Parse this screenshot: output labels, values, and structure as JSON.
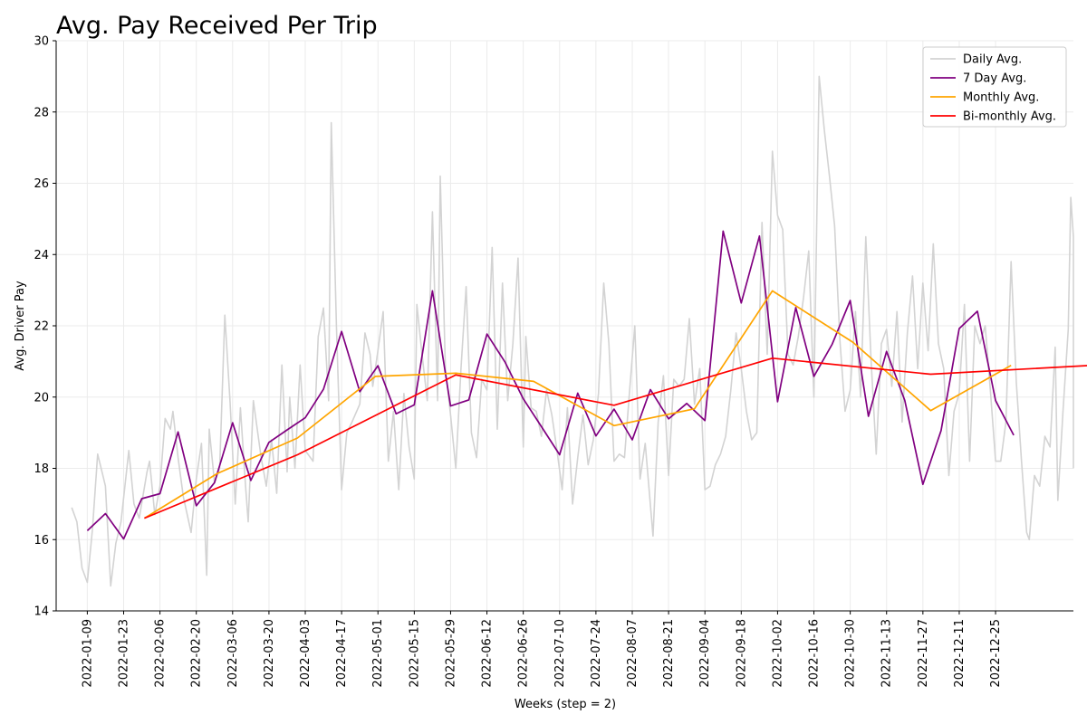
{
  "chart_data": {
    "type": "line",
    "title": "Avg. Pay Received Per Trip",
    "xlabel": "Weeks (step = 2)",
    "ylabel": "Avg. Driver Pay",
    "xlim": [
      "2021-12-28",
      "2023-01-24"
    ],
    "ylim": [
      14,
      30
    ],
    "grid": true,
    "legend": "top-right",
    "x_ticks": [
      "2022-01-09",
      "2022-01-23",
      "2022-02-06",
      "2022-02-20",
      "2022-03-06",
      "2022-03-20",
      "2022-04-03",
      "2022-04-17",
      "2022-05-01",
      "2022-05-15",
      "2022-05-29",
      "2022-06-12",
      "2022-06-26",
      "2022-07-10",
      "2022-07-24",
      "2022-08-07",
      "2022-08-21",
      "2022-09-04",
      "2022-09-18",
      "2022-10-02",
      "2022-10-16",
      "2022-10-30",
      "2022-11-13",
      "2022-11-27",
      "2022-12-11",
      "2022-12-25"
    ],
    "y_ticks": [
      14,
      16,
      18,
      20,
      22,
      24,
      26,
      28,
      30
    ],
    "series": [
      {
        "name": "Daily Avg.",
        "color": "#d3d3d3",
        "points": [
          [
            "2022-01-03",
            16.9
          ],
          [
            "2022-01-05",
            16.5
          ],
          [
            "2022-01-07",
            15.2
          ],
          [
            "2022-01-09",
            14.8
          ],
          [
            "2022-01-11",
            16.3
          ],
          [
            "2022-01-13",
            18.4
          ],
          [
            "2022-01-15",
            17.8
          ],
          [
            "2022-01-16",
            17.5
          ],
          [
            "2022-01-18",
            14.7
          ],
          [
            "2022-01-20",
            15.9
          ],
          [
            "2022-01-22",
            16.5
          ],
          [
            "2022-01-25",
            18.5
          ],
          [
            "2022-01-27",
            17.0
          ],
          [
            "2022-01-29",
            16.6
          ],
          [
            "2022-02-01",
            17.9
          ],
          [
            "2022-02-02",
            18.2
          ],
          [
            "2022-02-04",
            16.7
          ],
          [
            "2022-02-06",
            17.5
          ],
          [
            "2022-02-08",
            19.4
          ],
          [
            "2022-02-10",
            19.1
          ],
          [
            "2022-02-11",
            19.6
          ],
          [
            "2022-02-13",
            18.3
          ],
          [
            "2022-02-15",
            17.2
          ],
          [
            "2022-02-18",
            16.2
          ],
          [
            "2022-02-20",
            17.7
          ],
          [
            "2022-02-22",
            18.7
          ],
          [
            "2022-02-24",
            15.0
          ],
          [
            "2022-02-25",
            19.1
          ],
          [
            "2022-02-27",
            17.6
          ],
          [
            "2022-03-01",
            18.0
          ],
          [
            "2022-03-03",
            22.3
          ],
          [
            "2022-03-05",
            19.9
          ],
          [
            "2022-03-07",
            17.0
          ],
          [
            "2022-03-09",
            19.7
          ],
          [
            "2022-03-11",
            17.5
          ],
          [
            "2022-03-12",
            16.5
          ],
          [
            "2022-03-14",
            19.9
          ],
          [
            "2022-03-17",
            18.3
          ],
          [
            "2022-03-19",
            17.5
          ],
          [
            "2022-03-21",
            18.8
          ],
          [
            "2022-03-23",
            17.3
          ],
          [
            "2022-03-25",
            20.9
          ],
          [
            "2022-03-27",
            17.9
          ],
          [
            "2022-03-28",
            20.0
          ],
          [
            "2022-03-30",
            18.0
          ],
          [
            "2022-04-01",
            20.9
          ],
          [
            "2022-04-03",
            18.5
          ],
          [
            "2022-04-06",
            18.2
          ],
          [
            "2022-04-08",
            21.7
          ],
          [
            "2022-04-10",
            22.5
          ],
          [
            "2022-04-12",
            19.9
          ],
          [
            "2022-04-13",
            27.7
          ],
          [
            "2022-04-15",
            22.0
          ],
          [
            "2022-04-17",
            17.4
          ],
          [
            "2022-04-19",
            19.0
          ],
          [
            "2022-04-21",
            19.3
          ],
          [
            "2022-04-24",
            19.8
          ],
          [
            "2022-04-26",
            21.8
          ],
          [
            "2022-04-28",
            21.2
          ],
          [
            "2022-04-29",
            20.3
          ],
          [
            "2022-05-01",
            21.3
          ],
          [
            "2022-05-03",
            22.4
          ],
          [
            "2022-05-05",
            18.2
          ],
          [
            "2022-05-07",
            19.6
          ],
          [
            "2022-05-09",
            17.4
          ],
          [
            "2022-05-11",
            20.1
          ],
          [
            "2022-05-13",
            18.6
          ],
          [
            "2022-05-15",
            17.7
          ],
          [
            "2022-05-16",
            22.6
          ],
          [
            "2022-05-18",
            21.2
          ],
          [
            "2022-05-20",
            19.9
          ],
          [
            "2022-05-22",
            25.2
          ],
          [
            "2022-05-24",
            19.9
          ],
          [
            "2022-05-25",
            26.2
          ],
          [
            "2022-05-27",
            20.8
          ],
          [
            "2022-05-29",
            19.5
          ],
          [
            "2022-05-31",
            18.0
          ],
          [
            "2022-06-02",
            20.8
          ],
          [
            "2022-06-04",
            23.1
          ],
          [
            "2022-06-06",
            19.0
          ],
          [
            "2022-06-08",
            18.3
          ],
          [
            "2022-06-10",
            20.5
          ],
          [
            "2022-06-12",
            20.2
          ],
          [
            "2022-06-14",
            24.2
          ],
          [
            "2022-06-16",
            19.1
          ],
          [
            "2022-06-18",
            23.2
          ],
          [
            "2022-06-20",
            19.9
          ],
          [
            "2022-06-22",
            21.5
          ],
          [
            "2022-06-24",
            23.9
          ],
          [
            "2022-06-26",
            18.6
          ],
          [
            "2022-06-27",
            21.7
          ],
          [
            "2022-06-29",
            19.7
          ],
          [
            "2022-07-01",
            19.6
          ],
          [
            "2022-07-03",
            18.9
          ],
          [
            "2022-07-05",
            20.2
          ],
          [
            "2022-07-07",
            19.5
          ],
          [
            "2022-07-09",
            18.5
          ],
          [
            "2022-07-11",
            17.4
          ],
          [
            "2022-07-13",
            19.7
          ],
          [
            "2022-07-15",
            17.0
          ],
          [
            "2022-07-17",
            18.3
          ],
          [
            "2022-07-19",
            19.5
          ],
          [
            "2022-07-21",
            18.1
          ],
          [
            "2022-07-23",
            18.8
          ],
          [
            "2022-07-25",
            20.1
          ],
          [
            "2022-07-27",
            23.2
          ],
          [
            "2022-07-29",
            21.5
          ],
          [
            "2022-07-31",
            18.2
          ],
          [
            "2022-08-02",
            18.4
          ],
          [
            "2022-08-04",
            18.3
          ],
          [
            "2022-08-06",
            20.2
          ],
          [
            "2022-08-08",
            22.0
          ],
          [
            "2022-08-10",
            17.7
          ],
          [
            "2022-08-12",
            18.7
          ],
          [
            "2022-08-15",
            16.1
          ],
          [
            "2022-08-17",
            19.3
          ],
          [
            "2022-08-19",
            20.6
          ],
          [
            "2022-08-21",
            17.8
          ],
          [
            "2022-08-23",
            20.5
          ],
          [
            "2022-08-25",
            20.3
          ],
          [
            "2022-08-27",
            20.5
          ],
          [
            "2022-08-29",
            22.2
          ],
          [
            "2022-08-31",
            19.8
          ],
          [
            "2022-09-02",
            20.8
          ],
          [
            "2022-09-04",
            17.4
          ],
          [
            "2022-09-06",
            17.5
          ],
          [
            "2022-09-08",
            18.1
          ],
          [
            "2022-09-10",
            18.4
          ],
          [
            "2022-09-12",
            18.9
          ],
          [
            "2022-09-14",
            20.2
          ],
          [
            "2022-09-16",
            21.8
          ],
          [
            "2022-09-18",
            20.8
          ],
          [
            "2022-09-20",
            19.6
          ],
          [
            "2022-09-22",
            18.8
          ],
          [
            "2022-09-24",
            19.0
          ],
          [
            "2022-09-26",
            24.9
          ],
          [
            "2022-09-28",
            21.2
          ],
          [
            "2022-09-30",
            26.9
          ],
          [
            "2022-10-02",
            25.1
          ],
          [
            "2022-10-04",
            24.7
          ],
          [
            "2022-10-06",
            21.2
          ],
          [
            "2022-10-08",
            20.9
          ],
          [
            "2022-10-10",
            21.7
          ],
          [
            "2022-10-12",
            22.8
          ],
          [
            "2022-10-14",
            24.1
          ],
          [
            "2022-10-16",
            20.0
          ],
          [
            "2022-10-18",
            29.0
          ],
          [
            "2022-10-20",
            27.5
          ],
          [
            "2022-10-22",
            26.2
          ],
          [
            "2022-10-24",
            24.8
          ],
          [
            "2022-10-26",
            21.6
          ],
          [
            "2022-10-28",
            19.6
          ],
          [
            "2022-10-30",
            20.2
          ],
          [
            "2022-11-01",
            22.4
          ],
          [
            "2022-11-03",
            20.0
          ],
          [
            "2022-11-05",
            24.5
          ],
          [
            "2022-11-07",
            21.1
          ],
          [
            "2022-11-09",
            18.4
          ],
          [
            "2022-11-11",
            21.5
          ],
          [
            "2022-11-13",
            21.9
          ],
          [
            "2022-11-15",
            20.3
          ],
          [
            "2022-11-17",
            22.4
          ],
          [
            "2022-11-19",
            19.3
          ],
          [
            "2022-11-21",
            21.8
          ],
          [
            "2022-11-23",
            23.4
          ],
          [
            "2022-11-25",
            20.8
          ],
          [
            "2022-11-27",
            23.2
          ],
          [
            "2022-11-29",
            21.3
          ],
          [
            "2022-12-01",
            24.3
          ],
          [
            "2022-12-03",
            21.5
          ],
          [
            "2022-12-05",
            20.8
          ],
          [
            "2022-12-07",
            17.8
          ],
          [
            "2022-12-09",
            19.6
          ],
          [
            "2022-12-11",
            20.1
          ],
          [
            "2022-12-13",
            22.6
          ],
          [
            "2022-12-15",
            18.2
          ],
          [
            "2022-12-17",
            22.0
          ],
          [
            "2022-12-19",
            21.5
          ],
          [
            "2022-12-21",
            22.0
          ],
          [
            "2022-12-23",
            20.2
          ],
          [
            "2022-12-25",
            18.2
          ],
          [
            "2022-12-27",
            18.2
          ],
          [
            "2022-12-29",
            19.3
          ],
          [
            "2022-12-31",
            23.8
          ],
          [
            "2023-01-02",
            20.4
          ],
          [
            "2023-01-04",
            18.2
          ],
          [
            "2023-01-06",
            16.2
          ],
          [
            "2023-01-07",
            16.0
          ],
          [
            "2023-01-09",
            17.8
          ],
          [
            "2023-01-11",
            17.5
          ],
          [
            "2023-01-13",
            18.9
          ],
          [
            "2023-01-15",
            18.6
          ],
          [
            "2023-01-17",
            21.4
          ],
          [
            "2023-01-18",
            17.1
          ],
          [
            "2023-01-20",
            19.6
          ],
          [
            "2023-01-22",
            21.9
          ],
          [
            "2023-01-23",
            25.6
          ],
          [
            "2023-01-24",
            24.5
          ],
          [
            "2023-01-24",
            18.0
          ]
        ]
      },
      {
        "name": "7 Day Avg.",
        "color": "#800080",
        "points": [
          [
            "2022-01-09",
            16.25
          ],
          [
            "2022-01-16",
            16.73
          ],
          [
            "2022-01-23",
            16.02
          ],
          [
            "2022-01-30",
            17.15
          ],
          [
            "2022-02-06",
            17.29
          ],
          [
            "2022-02-13",
            19.02
          ],
          [
            "2022-02-20",
            16.95
          ],
          [
            "2022-02-27",
            17.6
          ],
          [
            "2022-03-06",
            19.28
          ],
          [
            "2022-03-13",
            17.66
          ],
          [
            "2022-03-20",
            18.73
          ],
          [
            "2022-03-27",
            19.08
          ],
          [
            "2022-04-03",
            19.42
          ],
          [
            "2022-04-10",
            20.22
          ],
          [
            "2022-04-17",
            21.84
          ],
          [
            "2022-04-24",
            20.15
          ],
          [
            "2022-05-01",
            20.88
          ],
          [
            "2022-05-08",
            19.53
          ],
          [
            "2022-05-15",
            19.78
          ],
          [
            "2022-05-22",
            22.98
          ],
          [
            "2022-05-29",
            19.75
          ],
          [
            "2022-06-05",
            19.92
          ],
          [
            "2022-06-12",
            21.77
          ],
          [
            "2022-06-19",
            20.98
          ],
          [
            "2022-06-26",
            19.95
          ],
          [
            "2022-07-03",
            19.17
          ],
          [
            "2022-07-10",
            18.38
          ],
          [
            "2022-07-17",
            20.11
          ],
          [
            "2022-07-24",
            18.91
          ],
          [
            "2022-07-31",
            19.66
          ],
          [
            "2022-08-07",
            18.8
          ],
          [
            "2022-08-14",
            20.21
          ],
          [
            "2022-08-21",
            19.39
          ],
          [
            "2022-08-28",
            19.82
          ],
          [
            "2022-09-04",
            19.34
          ],
          [
            "2022-09-11",
            24.66
          ],
          [
            "2022-09-18",
            22.64
          ],
          [
            "2022-09-25",
            24.52
          ],
          [
            "2022-10-02",
            19.87
          ],
          [
            "2022-10-09",
            22.51
          ],
          [
            "2022-10-16",
            20.58
          ],
          [
            "2022-10-23",
            21.48
          ],
          [
            "2022-10-30",
            22.71
          ],
          [
            "2022-11-06",
            19.46
          ],
          [
            "2022-11-13",
            21.28
          ],
          [
            "2022-11-20",
            19.91
          ],
          [
            "2022-11-27",
            17.55
          ],
          [
            "2022-12-04",
            19.06
          ],
          [
            "2022-12-11",
            21.92
          ],
          [
            "2022-12-18",
            22.41
          ],
          [
            "2022-12-25",
            19.9
          ],
          [
            "2023-01-01",
            18.93
          ]
        ]
      },
      {
        "name": "Monthly Avg.",
        "color": "#ffa500",
        "points": [
          [
            "2022-01-31",
            16.6
          ],
          [
            "2022-02-28",
            17.85
          ],
          [
            "2022-03-31",
            18.85
          ],
          [
            "2022-04-30",
            20.58
          ],
          [
            "2022-05-31",
            20.67
          ],
          [
            "2022-06-30",
            20.44
          ],
          [
            "2022-07-31",
            19.2
          ],
          [
            "2022-08-31",
            19.67
          ],
          [
            "2022-09-30",
            22.98
          ],
          [
            "2022-10-31",
            21.54
          ],
          [
            "2022-11-30",
            19.62
          ],
          [
            "2022-12-31",
            20.89
          ]
        ]
      },
      {
        "name": "Bi-monthly Avg.",
        "color": "#ff0000",
        "points": [
          [
            "2022-01-31",
            16.6
          ],
          [
            "2022-03-31",
            18.38
          ],
          [
            "2022-05-31",
            20.62
          ],
          [
            "2022-07-31",
            19.77
          ],
          [
            "2022-09-30",
            21.09
          ],
          [
            "2022-11-30",
            20.64
          ],
          [
            "2023-01-31",
            20.89
          ]
        ]
      }
    ]
  }
}
